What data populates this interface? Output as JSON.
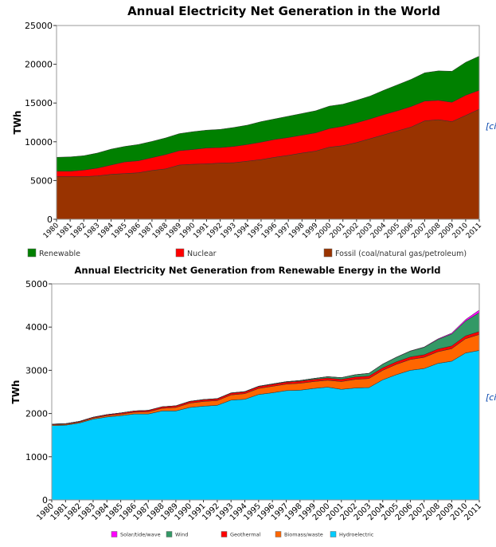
{
  "cite_text": "[ci",
  "chart_data": [
    {
      "type": "area",
      "stacked": true,
      "title": "Annual Electricity Net Generation in the World",
      "ylabel": "TWh",
      "xlabel": "",
      "ylim": [
        0,
        25000
      ],
      "yticks": [
        0,
        5000,
        10000,
        15000,
        20000,
        25000
      ],
      "grid": false,
      "legend_position": "bottom",
      "x": [
        1980,
        1981,
        1982,
        1983,
        1984,
        1985,
        1986,
        1987,
        1988,
        1989,
        1990,
        1991,
        1992,
        1993,
        1994,
        1995,
        1996,
        1997,
        1998,
        1999,
        2000,
        2001,
        2002,
        2003,
        2004,
        2005,
        2006,
        2007,
        2008,
        2009,
        2010,
        2011
      ],
      "series": [
        {
          "name": "Fossil (coal/natural gas/petroleum)",
          "color": "#993300",
          "values": [
            5500,
            5500,
            5500,
            5600,
            5800,
            5900,
            6000,
            6300,
            6500,
            7000,
            7100,
            7150,
            7250,
            7300,
            7500,
            7700,
            8000,
            8250,
            8550,
            8800,
            9300,
            9500,
            9900,
            10400,
            10900,
            11400,
            11900,
            12700,
            12850,
            12600,
            13400,
            14200
          ]
        },
        {
          "name": "Nuclear",
          "color": "#ff0000",
          "values": [
            700,
            700,
            850,
            1000,
            1200,
            1500,
            1550,
            1650,
            1850,
            1850,
            1900,
            2050,
            2000,
            2100,
            2150,
            2250,
            2300,
            2300,
            2300,
            2350,
            2400,
            2500,
            2550,
            2550,
            2600,
            2600,
            2650,
            2550,
            2500,
            2500,
            2600,
            2450
          ]
        },
        {
          "name": "Renewable",
          "color": "#008000",
          "values": [
            1800,
            1850,
            1850,
            1950,
            2050,
            2000,
            2100,
            2100,
            2150,
            2200,
            2300,
            2300,
            2350,
            2450,
            2500,
            2650,
            2650,
            2750,
            2800,
            2850,
            2900,
            2850,
            2900,
            2950,
            3150,
            3350,
            3500,
            3650,
            3800,
            4000,
            4250,
            4400
          ]
        }
      ],
      "legend_order": [
        "Renewable",
        "Nuclear",
        "Fossil (coal/natural gas/petroleum)"
      ]
    },
    {
      "type": "area",
      "stacked": true,
      "title": "Annual Electricity Net Generation from Renewable Energy in the World",
      "ylabel": "TWh",
      "xlabel": "",
      "ylim": [
        0,
        5000
      ],
      "yticks": [
        0,
        1000,
        2000,
        3000,
        4000,
        5000
      ],
      "grid": false,
      "legend_position": "bottom",
      "x": [
        1980,
        1981,
        1982,
        1983,
        1984,
        1985,
        1986,
        1987,
        1988,
        1989,
        1990,
        1991,
        1992,
        1993,
        1994,
        1995,
        1996,
        1997,
        1998,
        1999,
        2000,
        2001,
        2002,
        2003,
        2004,
        2005,
        2006,
        2007,
        2008,
        2009,
        2010,
        2011
      ],
      "series": [
        {
          "name": "Hydroelectric",
          "color": "#00ccff",
          "values": [
            1720,
            1730,
            1780,
            1870,
            1920,
            1950,
            1990,
            1990,
            2060,
            2060,
            2140,
            2170,
            2190,
            2310,
            2330,
            2440,
            2480,
            2530,
            2540,
            2580,
            2610,
            2560,
            2590,
            2600,
            2780,
            2900,
            3000,
            3040,
            3160,
            3210,
            3400,
            3460
          ]
        },
        {
          "name": "Biomass/waste",
          "color": "#ff6600",
          "values": [
            20,
            20,
            20,
            25,
            30,
            35,
            40,
            50,
            60,
            80,
            100,
            110,
            110,
            120,
            130,
            140,
            150,
            150,
            160,
            160,
            160,
            180,
            200,
            210,
            220,
            240,
            250,
            260,
            270,
            290,
            330,
            370
          ]
        },
        {
          "name": "Geothermal",
          "color": "#ff0000",
          "values": [
            15,
            15,
            18,
            20,
            25,
            28,
            30,
            33,
            35,
            37,
            38,
            40,
            40,
            42,
            42,
            44,
            45,
            45,
            48,
            50,
            52,
            52,
            55,
            56,
            57,
            58,
            60,
            60,
            62,
            64,
            66,
            68
          ]
        },
        {
          "name": "Wind",
          "color": "#339966",
          "values": [
            0,
            0,
            0,
            0,
            0,
            0,
            0,
            1,
            1,
            2,
            4,
            4,
            5,
            5,
            6,
            8,
            10,
            12,
            16,
            21,
            30,
            38,
            52,
            63,
            85,
            104,
            133,
            171,
            220,
            276,
            342,
            437
          ]
        },
        {
          "name": "Solar/tide/wave",
          "color": "#ff00ff",
          "values": [
            1,
            1,
            1,
            1,
            1,
            1,
            1,
            1,
            1,
            1,
            1,
            1,
            1,
            1,
            1,
            1,
            1,
            1,
            1,
            1,
            2,
            2,
            2,
            3,
            4,
            5,
            6,
            8,
            15,
            21,
            35,
            60
          ]
        }
      ],
      "legend_order": [
        "Solar/tide/wave",
        "Wind",
        "Geothermal",
        "Biomass/waste",
        "Hydroelectric"
      ]
    }
  ]
}
